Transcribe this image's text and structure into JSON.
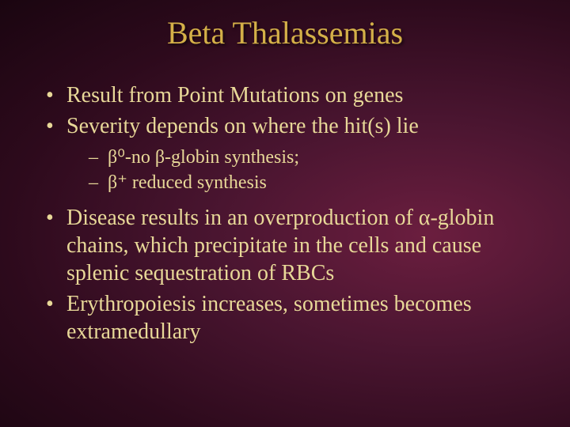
{
  "slide": {
    "title": "Beta Thalassemias",
    "bullets": [
      {
        "text": "Result from Point Mutations on genes"
      },
      {
        "text": "Severity depends on where the hit(s) lie",
        "sub": [
          "β⁰-no β-globin synthesis;",
          "β⁺ reduced synthesis"
        ]
      },
      {
        "text": "Disease results in an overproduction of α-globin chains, which precipitate in the cells and cause splenic sequestration of RBCs"
      },
      {
        "text": "Erythropoiesis increases, sometimes becomes extramedullary"
      }
    ]
  },
  "style": {
    "background_gradient": {
      "center": "#6b1e3f",
      "mid": "#4a1530",
      "outer": "#2d0a1c",
      "edge": "#1a0510"
    },
    "title_color": "#d4b048",
    "body_color": "#e8d898",
    "title_fontsize": 40,
    "bullet_fontsize": 28,
    "subbullet_fontsize": 24,
    "font_family": "Times New Roman"
  }
}
